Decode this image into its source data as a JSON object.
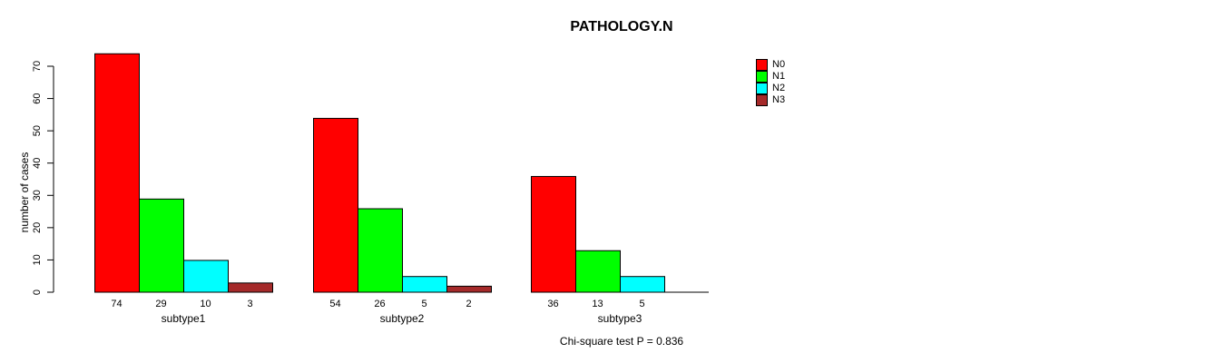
{
  "chart_data": {
    "type": "bar",
    "title": "PATHOLOGY.N",
    "xlabel": "",
    "ylabel": "number of cases",
    "categories": [
      "subtype1",
      "subtype2",
      "subtype3"
    ],
    "series": [
      {
        "name": "N0",
        "color": "#ff0000",
        "values": [
          74,
          54,
          36
        ]
      },
      {
        "name": "N1",
        "color": "#00ff00",
        "values": [
          29,
          26,
          13
        ]
      },
      {
        "name": "N2",
        "color": "#00ffff",
        "values": [
          10,
          5,
          5
        ]
      },
      {
        "name": "N3",
        "color": "#a52a2a",
        "values": [
          3,
          2,
          0
        ]
      }
    ],
    "ylim": [
      0,
      70
    ],
    "yticks": [
      0,
      10,
      20,
      30,
      40,
      50,
      60,
      70
    ],
    "grid": false,
    "legend_position": "right-of-plot",
    "bar_value_labels_shown": true,
    "zero_value_labels_hidden": true,
    "annotation": "Chi-square test P = 0.836",
    "axis_color": "#000000",
    "background_color": "#ffffff"
  }
}
